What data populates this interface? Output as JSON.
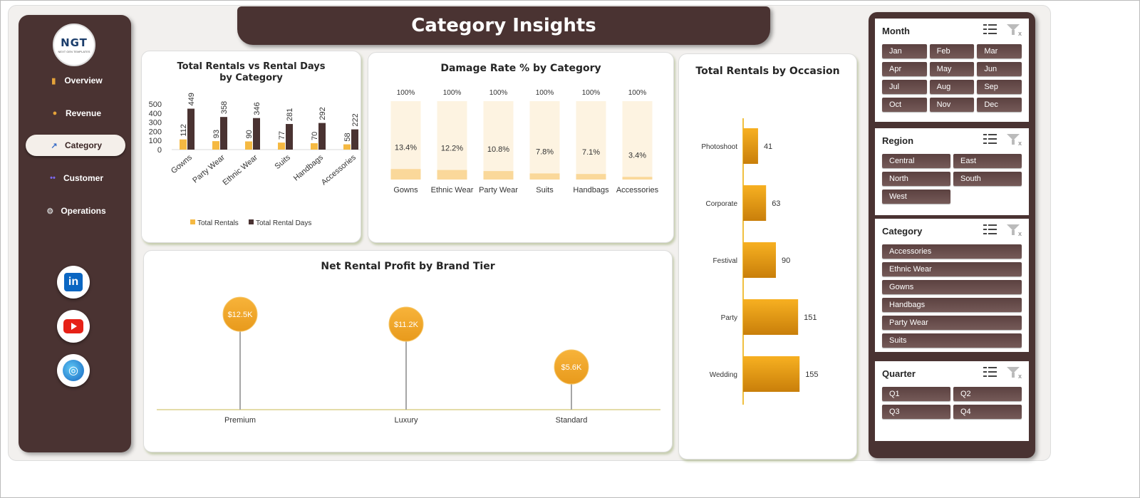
{
  "header": {
    "title": "Category Insights"
  },
  "logo": {
    "text": "NGT",
    "tagline": "NEXT GEN TEMPLATES"
  },
  "nav": [
    {
      "label": "Overview",
      "icon": "bar-chart-icon"
    },
    {
      "label": "Revenue",
      "icon": "money-bag-icon"
    },
    {
      "label": "Category",
      "icon": "line-chart-icon"
    },
    {
      "label": "Customer",
      "icon": "people-icon"
    },
    {
      "label": "Operations",
      "icon": "gear-icon"
    }
  ],
  "active_nav": "Category",
  "social": {
    "linkedin": "in"
  },
  "charts": {
    "rentals": {
      "title": "Total Rentals vs Rental Days by Category"
    },
    "damage": {
      "title": "Damage Rate % by Category"
    },
    "profit": {
      "title": "Net Rental Profit by Brand Tier"
    },
    "occasion": {
      "title": "Total Rentals by Occasion"
    }
  },
  "chart_data": [
    {
      "type": "bar",
      "title": "Total Rentals vs Rental Days by Category",
      "categories": [
        "Gowns",
        "Party Wear",
        "Ethnic Wear",
        "Suits",
        "Handbags",
        "Accessories"
      ],
      "series": [
        {
          "name": "Total Rentals",
          "values": [
            112,
            93,
            90,
            77,
            70,
            58
          ],
          "color": "#f5b942"
        },
        {
          "name": "Total Rental Days",
          "values": [
            449,
            358,
            346,
            281,
            292,
            222
          ],
          "color": "#4a3332"
        }
      ],
      "yticks": [
        "500",
        "400",
        "300",
        "200",
        "100",
        "0"
      ],
      "ylim": [
        0,
        500
      ],
      "legend": "bottom"
    },
    {
      "type": "bar",
      "title": "Damage Rate % by Category",
      "categories": [
        "Gowns",
        "Ethnic Wear",
        "Party Wear",
        "Suits",
        "Handbags",
        "Accessories"
      ],
      "values": [
        13.4,
        12.2,
        10.8,
        7.8,
        7.1,
        3.4
      ],
      "value_labels": [
        "13.4%",
        "12.2%",
        "10.8%",
        "7.8%",
        "7.1%",
        "3.4%"
      ],
      "background_labels": [
        "100%",
        "100%",
        "100%",
        "100%",
        "100%",
        "100%"
      ],
      "ylim": [
        0,
        100
      ]
    },
    {
      "type": "scatter",
      "title": "Net Rental Profit by Brand Tier",
      "categories": [
        "Premium",
        "Luxury",
        "Standard"
      ],
      "values": [
        12.5,
        11.2,
        5.6
      ],
      "value_labels": [
        "$12.5K",
        "$11.2K",
        "$5.6K"
      ]
    },
    {
      "type": "bar",
      "title": "Total Rentals by Occasion",
      "orientation": "horizontal",
      "categories": [
        "Photoshoot",
        "Corporate",
        "Festival",
        "Party",
        "Wedding"
      ],
      "values": [
        41,
        63,
        90,
        151,
        155
      ]
    }
  ],
  "slicers": [
    {
      "title": "Month",
      "items": [
        "Jan",
        "Feb",
        "Mar",
        "Apr",
        "May",
        "Jun",
        "Jul",
        "Aug",
        "Sep",
        "Oct",
        "Nov",
        "Dec"
      ]
    },
    {
      "title": "Region",
      "items": [
        "Central",
        "East",
        "North",
        "South",
        "West"
      ]
    },
    {
      "title": "Category",
      "items": [
        "Accessories",
        "Ethnic Wear",
        "Gowns",
        "Handbags",
        "Party Wear",
        "Suits"
      ]
    },
    {
      "title": "Quarter",
      "items": [
        "Q1",
        "Q2",
        "Q3",
        "Q4"
      ]
    }
  ],
  "colors": {
    "brown": "#4a3332",
    "gold": "#f5b942",
    "orange": "#f0a21a",
    "pale": "#fdf3e1"
  }
}
